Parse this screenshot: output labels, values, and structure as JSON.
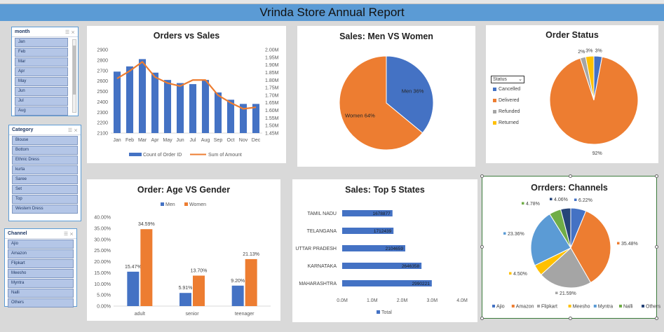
{
  "title": "Vrinda Store Annual Report",
  "slicers": {
    "month": {
      "header": "month",
      "items": [
        "Jan",
        "Feb",
        "Mar",
        "Apr",
        "May",
        "Jun",
        "Jul",
        "Aug"
      ]
    },
    "category": {
      "header": "Category",
      "items": [
        "Blouse",
        "Bottom",
        "Ethnic Dress",
        "kurta",
        "Saree",
        "Set",
        "Top",
        "Western Dress"
      ]
    },
    "channel": {
      "header": "Channel",
      "items": [
        "Ajio",
        "Amazon",
        "Flipkart",
        "Meesho",
        "Myntra",
        "Nalli",
        "Others"
      ]
    }
  },
  "status_filter": {
    "label": "Status",
    "items": [
      "Cancelled",
      "Delivered",
      "Refunded",
      "Returned"
    ]
  },
  "colors": {
    "blue": "#4472c4",
    "orange": "#ed7d31",
    "gray": "#a5a5a5",
    "yellow": "#ffc000",
    "lightblue": "#5b9bd5",
    "green": "#70ad47",
    "navy": "#264478"
  },
  "chart_data": [
    {
      "type": "bar",
      "title": "Orders vs Sales",
      "categories": [
        "Jan",
        "Feb",
        "Mar",
        "Apr",
        "May",
        "Jun",
        "Jul",
        "Aug",
        "Sep",
        "Oct",
        "Nov",
        "Dec"
      ],
      "series": [
        {
          "name": "Count of Order ID",
          "kind": "bar",
          "axis": "left",
          "values": [
            2690,
            2740,
            2810,
            2680,
            2610,
            2580,
            2570,
            2610,
            2490,
            2420,
            2380,
            2380
          ]
        },
        {
          "name": "Sum of Amount",
          "kind": "line",
          "axis": "right",
          "values": [
            1.81,
            1.86,
            1.92,
            1.82,
            1.78,
            1.76,
            1.8,
            1.8,
            1.7,
            1.65,
            1.61,
            1.62
          ]
        }
      ],
      "ylim": [
        2100,
        2900
      ],
      "y_ticks": [
        "2100",
        "2200",
        "2300",
        "2400",
        "2500",
        "2600",
        "2700",
        "2800",
        "2900"
      ],
      "y2lim": [
        1.45,
        2.0
      ],
      "y2_ticks": [
        "1.45M",
        "1.50M",
        "1.55M",
        "1.60M",
        "1.65M",
        "1.70M",
        "1.75M",
        "1.80M",
        "1.85M",
        "1.90M",
        "1.95M",
        "2.00M"
      ],
      "legend": "bottom"
    },
    {
      "type": "pie",
      "title": "Sales: Men VS Women",
      "slices": [
        {
          "label": "Men",
          "value": 36,
          "text": "Men 36%"
        },
        {
          "label": "Women",
          "value": 64,
          "text": "Women 64%"
        }
      ]
    },
    {
      "type": "pie",
      "title": "Order Status",
      "slices": [
        {
          "label": "Cancelled",
          "value": 3,
          "text": "3%"
        },
        {
          "label": "Delivered",
          "value": 92,
          "text": "92%"
        },
        {
          "label": "Refunded",
          "value": 2,
          "text": "2%"
        },
        {
          "label": "Returned",
          "value": 3,
          "text": "3%"
        }
      ]
    },
    {
      "type": "bar",
      "title": "Order: Age VS Gender",
      "categories": [
        "adult",
        "senior",
        "teenager"
      ],
      "series": [
        {
          "name": "Men",
          "values": [
            15.47,
            5.91,
            9.2
          ],
          "labels": [
            "15.47%",
            "5.91%",
            "9.20%"
          ]
        },
        {
          "name": "Women",
          "values": [
            34.59,
            13.7,
            21.13
          ],
          "labels": [
            "34.59%",
            "13.70%",
            "21.13%"
          ]
        }
      ],
      "ylim": [
        0,
        40
      ],
      "y_ticks": [
        "0.00%",
        "5.00%",
        "10.00%",
        "15.00%",
        "20.00%",
        "25.00%",
        "30.00%",
        "35.00%",
        "40.00%"
      ],
      "legend": "top"
    },
    {
      "type": "bar",
      "orientation": "horizontal",
      "title": "Sales: Top 5 States",
      "categories": [
        "TAMIL NADU",
        "TELANGANA",
        "UTTAR PRADESH",
        "KARNATAKA",
        "MAHARASHTRA"
      ],
      "series": [
        {
          "name": "Total",
          "values": [
            1678877,
            1712439,
            2104659,
            2646358,
            2990221
          ]
        }
      ],
      "xlim": [
        0,
        4000000
      ],
      "x_ticks": [
        "0.0M",
        "1.0M",
        "2.0M",
        "3.0M",
        "4.0M"
      ],
      "legend": "bottom"
    },
    {
      "type": "pie",
      "title": "Orrders: Channels",
      "slices": [
        {
          "label": "Ajio",
          "value": 6.22,
          "text": "6.22%"
        },
        {
          "label": "Amazon",
          "value": 35.48,
          "text": "35.48%"
        },
        {
          "label": "Flipkart",
          "value": 21.59,
          "text": "21.59%"
        },
        {
          "label": "Meesho",
          "value": 4.5,
          "text": "4.50%"
        },
        {
          "label": "Myntra",
          "value": 23.36,
          "text": "23.36%"
        },
        {
          "label": "Nalli",
          "value": 4.78,
          "text": "4.78%"
        },
        {
          "label": "Others",
          "value": 4.06,
          "text": "4.06%"
        }
      ],
      "legend": "bottom"
    }
  ]
}
